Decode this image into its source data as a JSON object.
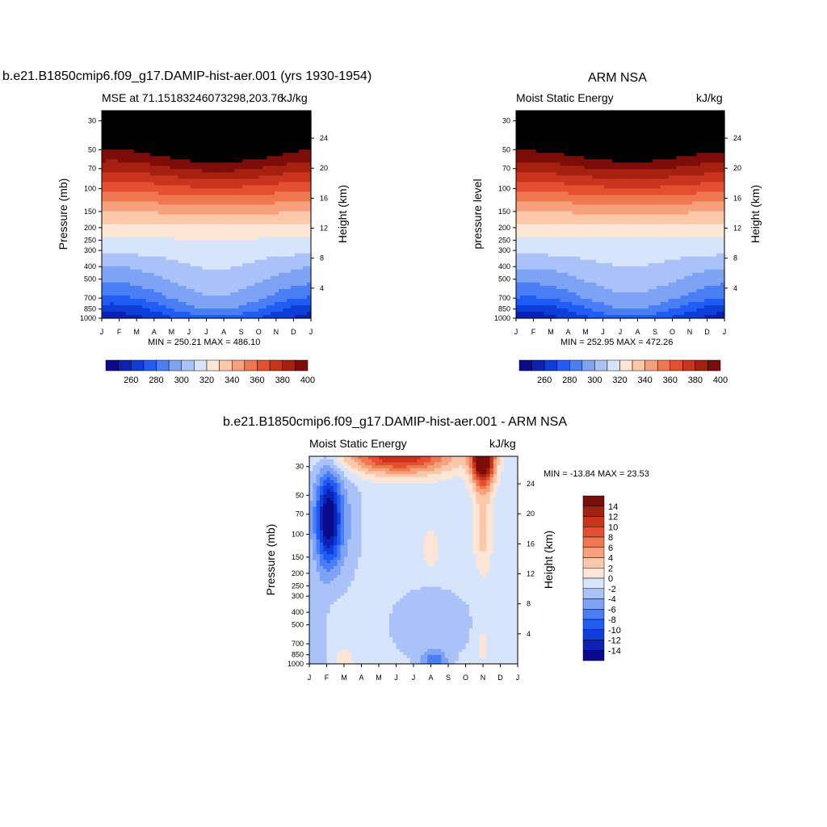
{
  "palette": [
    "#0a0a8a",
    "#0b22b4",
    "#0d3fd8",
    "#1f5df5",
    "#4a7ef5",
    "#7ea3f5",
    "#a9c3f8",
    "#d6e5fb",
    "#fde6d6",
    "#fbc8aa",
    "#f6a17b",
    "#f07850",
    "#e4502f",
    "#c9341c",
    "#a4200f",
    "#7c0d08"
  ],
  "panels": [
    {
      "id": "model",
      "main_title": "b.e21.B1850cmip6.f09_g17.DAMIP-hist-aer.001 (yrs 1930-1954)",
      "left_subtitle": "MSE at 71.15183246073298,203.76",
      "right_subtitle": "kJ/kg",
      "ylabel": "Pressure (mb)",
      "ylabel_right": "Height (km)",
      "stats": "MIN = 250.21 MAX = 486.10"
    },
    {
      "id": "obs",
      "main_title": "ARM NSA",
      "left_subtitle": "Moist Static Energy",
      "right_subtitle": "kJ/kg",
      "ylabel": "pressure level",
      "ylabel_right": "Height (km)",
      "stats": "MIN = 252.95 MAX = 472.26"
    },
    {
      "id": "diff",
      "main_title": "b.e21.B1850cmip6.f09_g17.DAMIP-hist-aer.001 - ARM NSA",
      "left_subtitle": "Moist Static Energy",
      "right_subtitle": "kJ/kg",
      "ylabel": "Pressure (mb)",
      "ylabel_right": "Height (km)",
      "stats": "MIN = -13.84 MAX =  23.53"
    }
  ],
  "chart_data": [
    {
      "type": "heatmap",
      "title": "b.e21.B1850cmip6.f09_g17.DAMIP-hist-aer.001 (yrs 1930-1954)",
      "subtitle": "MSE at 71.15183246073298,203.76",
      "units": "kJ/kg",
      "xlabel": "",
      "ylabel": "Pressure (mb)",
      "ylabel_right": "Height (km)",
      "x": [
        "J",
        "F",
        "M",
        "A",
        "M",
        "J",
        "J",
        "A",
        "S",
        "O",
        "N",
        "D",
        "J"
      ],
      "y_pressure_ticks": [
        30,
        50,
        70,
        100,
        150,
        200,
        250,
        300,
        400,
        500,
        700,
        850,
        1000
      ],
      "y_height_ticks": [
        4,
        8,
        12,
        16,
        20,
        24
      ],
      "y_scale": "log",
      "ylim": [
        1000,
        25
      ],
      "colorbar_labels": [
        "260",
        "280",
        "300",
        "320",
        "340",
        "360",
        "380",
        "400"
      ],
      "contour_levels": [
        250,
        260,
        270,
        280,
        290,
        300,
        310,
        320,
        330,
        340,
        350,
        360,
        370,
        380,
        390,
        400
      ],
      "min": 250.21,
      "max": 486.1,
      "profile_pressure": [
        1000,
        850,
        700,
        500,
        400,
        300,
        250,
        200,
        150,
        100,
        70,
        50,
        30
      ],
      "profile_winter": [
        255,
        262,
        278,
        293,
        300,
        313,
        319,
        327,
        340,
        362,
        383,
        400,
        440
      ],
      "profile_summer": [
        276,
        291,
        299,
        307,
        311,
        315,
        319,
        328,
        343,
        369,
        393,
        415,
        455
      ]
    },
    {
      "type": "heatmap",
      "title": "ARM NSA",
      "subtitle": "Moist Static Energy",
      "units": "kJ/kg",
      "xlabel": "",
      "ylabel": "pressure level",
      "ylabel_right": "Height (km)",
      "x": [
        "J",
        "F",
        "M",
        "A",
        "M",
        "J",
        "J",
        "A",
        "S",
        "O",
        "N",
        "D",
        "J"
      ],
      "y_pressure_ticks": [
        30,
        50,
        70,
        100,
        150,
        200,
        250,
        300,
        400,
        500,
        700,
        850,
        1000
      ],
      "y_height_ticks": [
        4,
        8,
        12,
        16,
        20,
        24
      ],
      "y_scale": "log",
      "ylim": [
        1000,
        25
      ],
      "colorbar_labels": [
        "260",
        "280",
        "300",
        "320",
        "340",
        "360",
        "380",
        "400"
      ],
      "contour_levels": [
        250,
        260,
        270,
        280,
        290,
        300,
        310,
        320,
        330,
        340,
        350,
        360,
        370,
        380,
        390,
        400
      ],
      "min": 252.95,
      "max": 472.26,
      "profile_pressure": [
        1000,
        850,
        700,
        500,
        400,
        300,
        250,
        200,
        150,
        100,
        70,
        50,
        30
      ],
      "profile_winter": [
        254,
        262,
        279,
        293,
        301,
        313,
        319,
        327,
        340,
        363,
        384,
        401,
        440
      ],
      "profile_summer": [
        276,
        290,
        298,
        306,
        310,
        315,
        319,
        327,
        343,
        369,
        392,
        414,
        450
      ]
    },
    {
      "type": "heatmap",
      "title": "b.e21.B1850cmip6.f09_g17.DAMIP-hist-aer.001 - ARM NSA",
      "subtitle": "Moist Static Energy",
      "units": "kJ/kg",
      "xlabel": "",
      "ylabel": "Pressure (mb)",
      "ylabel_right": "Height (km)",
      "x": [
        "J",
        "F",
        "M",
        "A",
        "M",
        "J",
        "J",
        "A",
        "S",
        "O",
        "N",
        "D",
        "J"
      ],
      "y_pressure_ticks": [
        30,
        50,
        70,
        100,
        150,
        200,
        250,
        300,
        400,
        500,
        700,
        850,
        1000
      ],
      "y_height_ticks": [
        4,
        8,
        12,
        16,
        20,
        24
      ],
      "y_scale": "log",
      "ylim": [
        1000,
        25
      ],
      "colorbar_labels": [
        "14",
        "12",
        "10",
        "8",
        "6",
        "4",
        "2",
        "0",
        "-2",
        "-4",
        "-6",
        "-8",
        "-10",
        "-12",
        "-14"
      ],
      "contour_levels": [
        -14,
        -12,
        -10,
        -8,
        -6,
        -4,
        -2,
        0,
        2,
        4,
        6,
        8,
        10,
        12,
        14
      ],
      "min": -13.84,
      "max": 23.53
    }
  ]
}
